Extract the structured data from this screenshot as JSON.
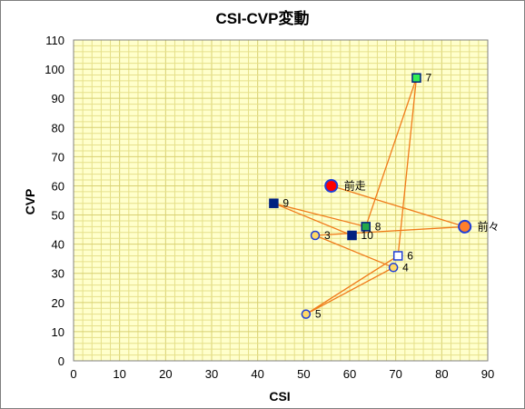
{
  "chart_data": {
    "type": "scatter",
    "title": "CSI-CVP変動",
    "xlabel": "CSI",
    "ylabel": "CVP",
    "xlim": [
      0,
      90
    ],
    "ylim": [
      0,
      110
    ],
    "x_ticks": [
      0,
      10,
      20,
      30,
      40,
      50,
      60,
      70,
      80,
      90
    ],
    "y_ticks": [
      0,
      10,
      20,
      30,
      40,
      50,
      60,
      70,
      80,
      90,
      100,
      110
    ],
    "minor_grid": {
      "x_step": 2,
      "y_step": 2
    },
    "grid": true,
    "legend": "none",
    "colors": {
      "plot_bg": "#ffffcc",
      "grid": "#e6e08a",
      "connector": "#f07b1a",
      "red": "#ff0000",
      "orange": "#ff7f2a",
      "yellow": "#ffd966",
      "navy": "#002080",
      "green": "#22a84a",
      "bright_green": "#33ee55",
      "white": "#ffffff",
      "blue_border": "#1f3fd6"
    },
    "points": [
      {
        "label": "前走",
        "x": 56,
        "y": 60,
        "marker": "circle",
        "fill": "#ff0000",
        "stroke": "#1f3fd6",
        "size": "large"
      },
      {
        "label": "前々",
        "x": 85,
        "y": 46,
        "marker": "circle",
        "fill": "#ff7f2a",
        "stroke": "#1f3fd6",
        "size": "large"
      },
      {
        "label": "3",
        "x": 52.5,
        "y": 43,
        "marker": "circle",
        "fill": "#ffd966",
        "stroke": "#1f3fd6",
        "size": "small"
      },
      {
        "label": "4",
        "x": 69.5,
        "y": 32,
        "marker": "circle",
        "fill": "#ffd966",
        "stroke": "#1f3fd6",
        "size": "small"
      },
      {
        "label": "5",
        "x": 50.5,
        "y": 16,
        "marker": "circle",
        "fill": "#ffd966",
        "stroke": "#1f3fd6",
        "size": "small"
      },
      {
        "label": "6",
        "x": 70.5,
        "y": 36,
        "marker": "square",
        "fill": "#ffffff",
        "stroke": "#1f3fd6",
        "size": "small"
      },
      {
        "label": "7",
        "x": 74.5,
        "y": 97,
        "marker": "square",
        "fill": "#33ee55",
        "stroke": "#002080",
        "size": "small"
      },
      {
        "label": "8",
        "x": 63.5,
        "y": 46,
        "marker": "square",
        "fill": "#22a84a",
        "stroke": "#002080",
        "size": "small"
      },
      {
        "label": "9",
        "x": 43.5,
        "y": 54,
        "marker": "square",
        "fill": "#002080",
        "stroke": "#002080",
        "size": "small"
      },
      {
        "label": "10",
        "x": 60.5,
        "y": 43,
        "marker": "square",
        "fill": "#002080",
        "stroke": "#002080",
        "size": "small"
      }
    ],
    "connector_order": [
      "前走",
      "前々",
      "3",
      "4",
      "5",
      "6",
      "7",
      "8",
      "9",
      "10"
    ]
  }
}
